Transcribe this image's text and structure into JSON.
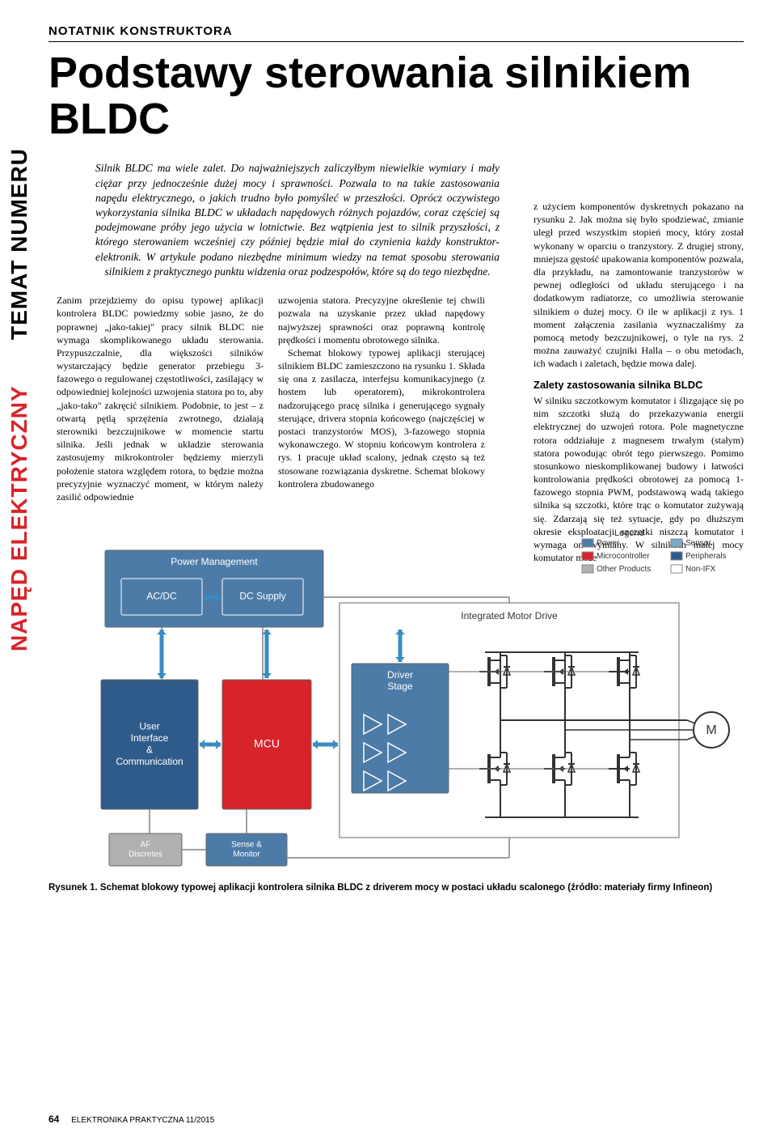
{
  "sidebar": {
    "line1_black": "TEMAT NUMERU",
    "line2_red": "NAPĘD ELEKTRYCZNY"
  },
  "rubric": "NOTATNIK KONSTRUKTORA",
  "title": "Podstawy sterowania silnikiem BLDC",
  "lead": "Silnik BLDC ma wiele zalet. Do najważniejszych zaliczyłbym niewielkie wymiary i mały ciężar przy jednocześnie dużej mocy i sprawności. Pozwala to na takie zastosowania napędu elektrycznego, o jakich trudno było pomyśleć w przeszłości. Oprócz oczywistego wykorzystania silnika BLDC w układach napędowych różnych pojazdów, coraz częściej są podejmowane próby jego użycia w lotnictwie. Bez wątpienia jest to silnik przyszłości, z którego sterowaniem wcześniej czy później będzie miał do czynienia każdy konstruktor-elektronik. W artykule podano niezbędne minimum wiedzy na temat sposobu sterowania silnikiem z praktycznego punktu widzenia oraz podzespołów, które są do tego niezbędne.",
  "col1": "Zanim przejdziemy do opisu typowej aplikacji kontrolera BLDC powiedzmy sobie jasno, że do poprawnej „jako-takiej\" pracy silnik BLDC nie wymaga skomplikowanego układu sterowania. Przypuszczalnie, dla większości silników wystarczający będzie generator przebiegu 3-fazowego o regulowanej częstotliwości, zasilający w odpowiedniej kolejności uzwojenia statora po to, aby „jako-tako\" zakręcić silnikiem. Podobnie, to jest – z otwartą pętlą sprzężenia zwrotnego, działają sterowniki bezczujnikowe w momencie startu silnika. Jeśli jednak w układzie sterowania zastosujemy mikrokontroler będziemy mierzyli położenie statora względem rotora, to będzie można precyzyjnie wyznaczyć moment, w którym należy zasilić odpowiednie",
  "col2a": "uzwojenia statora. Precyzyjne określenie tej chwili pozwala na uzyskanie przez układ napędowy najwyższej sprawności oraz poprawną kontrolę prędkości i momentu obrotowego silnika.",
  "col2b": "Schemat blokowy typowej aplikacji sterującej silnikiem BLDC zamieszczono na rysunku 1. Składa się ona z zasilacza, interfejsu komunikacyjnego (z hostem lub operatorem), mikrokontrolera nadzorującego pracę silnika i generującego sygnały sterujące, drivera stopnia końcowego (najczęściej w postaci tranzystorów MOS), 3-fazowego stopnia wykonawczego. W stopniu końcowym kontrolera z rys. 1 pracuje układ scalony, jednak często są też stosowane rozwiązania dyskretne. Schemat blokowy kontrolera zbudowanego",
  "col3a": "z użyciem komponentów dyskretnych pokazano na rysunku 2. Jak można się było spodziewać, zmianie uległ przed wszystkim stopień mocy, który został wykonany w oparciu o tranzystory. Z drugiej strony, mniejsza gęstość upakowania komponentów pozwala, dla przykładu, na zamontowanie tranzystorów w pewnej odległości od układu sterującego i na dodatkowym radiatorze, co umożliwia sterowanie silnikiem o dużej mocy. O ile w aplikacji z rys. 1 moment załączenia zasilania wyznaczaliśmy za pomocą metody bezczujnikowej, o tyle na rys. 2 można zauważyć czujniki Halla – o obu metodach, ich wadach i zaletach, będzie mowa dalej.",
  "col3h": "Zalety zastosowania silnika BLDC",
  "col3b": "W silniku szczotkowym komutator i ślizgające się po nim szczotki służą do przekazywania energii elektrycznej do uzwojeń rotora. Pole magnetyczne rotora oddziałuje z magnesem trwałym (stałym) statora powodując obrót tego pierwszego. Pomimo stosunkowo nieskomplikowanej budowy i łatwości kontrolowania prędkości obrotowej za pomocą 1-fazowego stopnia PWM, podstawową wadą takiego silnika są szczotki, które trąc o komutator zużywają się. Zdarzają się też sytuacje, gdy po dłuższym okresie eksploatacji szczotki niszczą komutator i wymaga on wymiany. W silnikach małej mocy komutator może",
  "diagram": {
    "legend_title": "Legend",
    "legend": [
      {
        "label": "Power",
        "color": "#4d7ba8"
      },
      {
        "label": "Microcontroller",
        "color": "#d8232a"
      },
      {
        "label": "Other Products",
        "color": "#b0b0b0"
      },
      {
        "label": "Sensor",
        "color": "#7aa8c9"
      },
      {
        "label": "Peripherals",
        "color": "#2e5b8a"
      },
      {
        "label": "Non-IFX",
        "color": "#ffffff"
      }
    ],
    "blocks": {
      "pm": {
        "label": "Power Management",
        "color": "#4d7ba8"
      },
      "acdc": {
        "label": "AC/DC",
        "color": "#4d7ba8"
      },
      "dcsupply": {
        "label": "DC Supply",
        "color": "#4d7ba8"
      },
      "ui": {
        "label": "User\nInterface\n&\nCommunication",
        "color": "#2e5b8a"
      },
      "mcu": {
        "label": "MCU",
        "color": "#d8232a"
      },
      "af": {
        "label": "AF\nDiscretes",
        "color": "#b0b0b0"
      },
      "sense": {
        "label": "Sense &\nMonitor",
        "color": "#4d7ba8"
      },
      "imd": {
        "label": "Integrated Motor Drive",
        "color": "#ffffff"
      },
      "driver": {
        "label": "Driver\nStage",
        "color": "#4d7ba8"
      },
      "motor": {
        "label": "M",
        "color": "#ffffff"
      }
    },
    "line_color": "#808080",
    "arrow_color": "#3a8bbf",
    "background": "#ffffff"
  },
  "caption": "Rysunek 1. Schemat blokowy typowej aplikacji kontrolera silnika BLDC z driverem mocy w postaci układu scalonego (źródło: materiały firmy Infineon)",
  "footer": {
    "page": "64",
    "mag": "ELEKTRONIKA PRAKTYCZNA 11/2015"
  }
}
